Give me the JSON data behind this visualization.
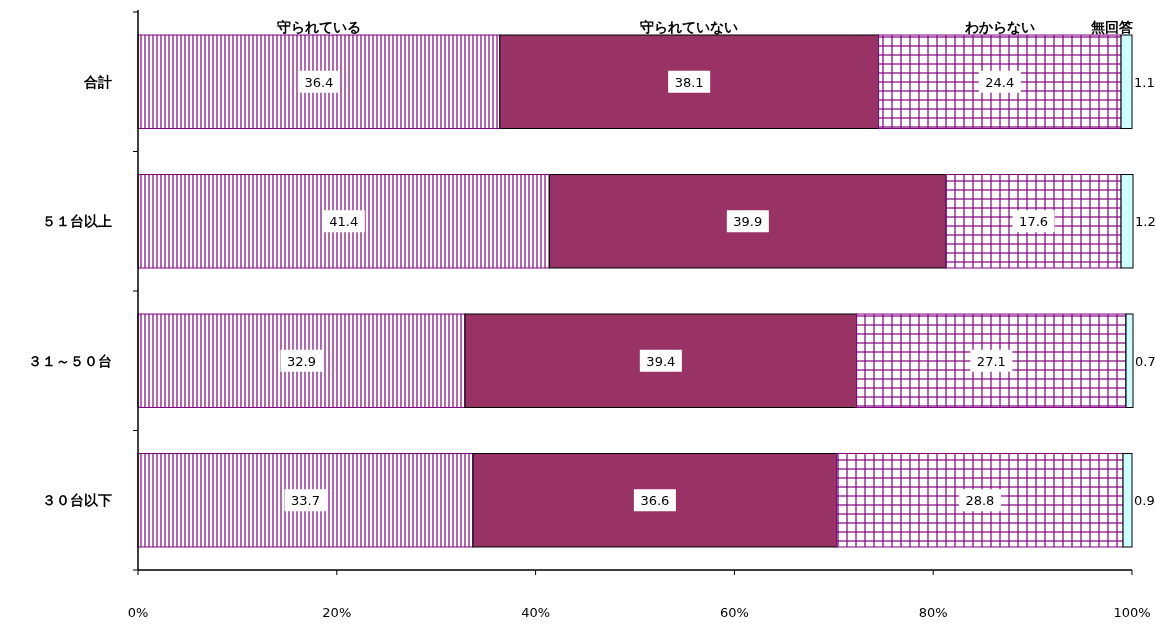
{
  "chart_data": {
    "type": "bar",
    "orientation": "horizontal",
    "stacked": true,
    "data_labels": true,
    "legend": "top",
    "categories": [
      "合計",
      "５１台以上",
      "３１～５０台",
      "３０台以下"
    ],
    "series": [
      {
        "name": "守られている",
        "color": "#800080",
        "values": [
          36.4,
          41.4,
          32.9,
          33.7
        ]
      },
      {
        "name": "守られていない",
        "color": "#993366",
        "values": [
          38.1,
          39.9,
          39.4,
          36.6
        ]
      },
      {
        "name": "わからない",
        "color": "#800080",
        "values": [
          24.4,
          17.6,
          27.1,
          28.8
        ]
      },
      {
        "name": "無回答",
        "color": "#ccffff",
        "values": [
          1.1,
          1.2,
          0.7,
          0.9
        ]
      }
    ],
    "xlim": [
      0,
      100
    ],
    "xticks": [
      {
        "value": 0,
        "label": "0%"
      },
      {
        "value": 20,
        "label": "20%"
      },
      {
        "value": 40,
        "label": "40%"
      },
      {
        "value": 60,
        "label": "60%"
      },
      {
        "value": 80,
        "label": "80%"
      },
      {
        "value": 100,
        "label": "100%"
      }
    ]
  }
}
